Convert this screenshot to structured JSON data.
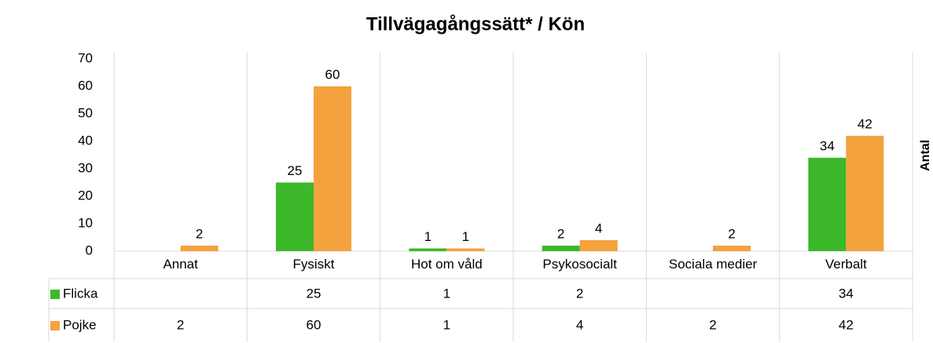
{
  "chart_data": {
    "type": "bar",
    "title": "Tillvägagångssätt* / Kön",
    "y_label": "Antal",
    "categories": [
      "Annat",
      "Fysiskt",
      "Hot om våld",
      "Psykosocialt",
      "Sociala medier",
      "Verbalt"
    ],
    "series": [
      {
        "name": "Flicka",
        "color": "#3db82b",
        "values": [
          null,
          25,
          1,
          2,
          null,
          34
        ]
      },
      {
        "name": "Pojke",
        "color": "#f4a23e",
        "values": [
          2,
          60,
          1,
          4,
          2,
          42
        ]
      }
    ],
    "ylim": [
      0,
      70
    ],
    "yticks": [
      0,
      10,
      20,
      30,
      40,
      50,
      60,
      70
    ],
    "grid": false,
    "data_table": true
  }
}
